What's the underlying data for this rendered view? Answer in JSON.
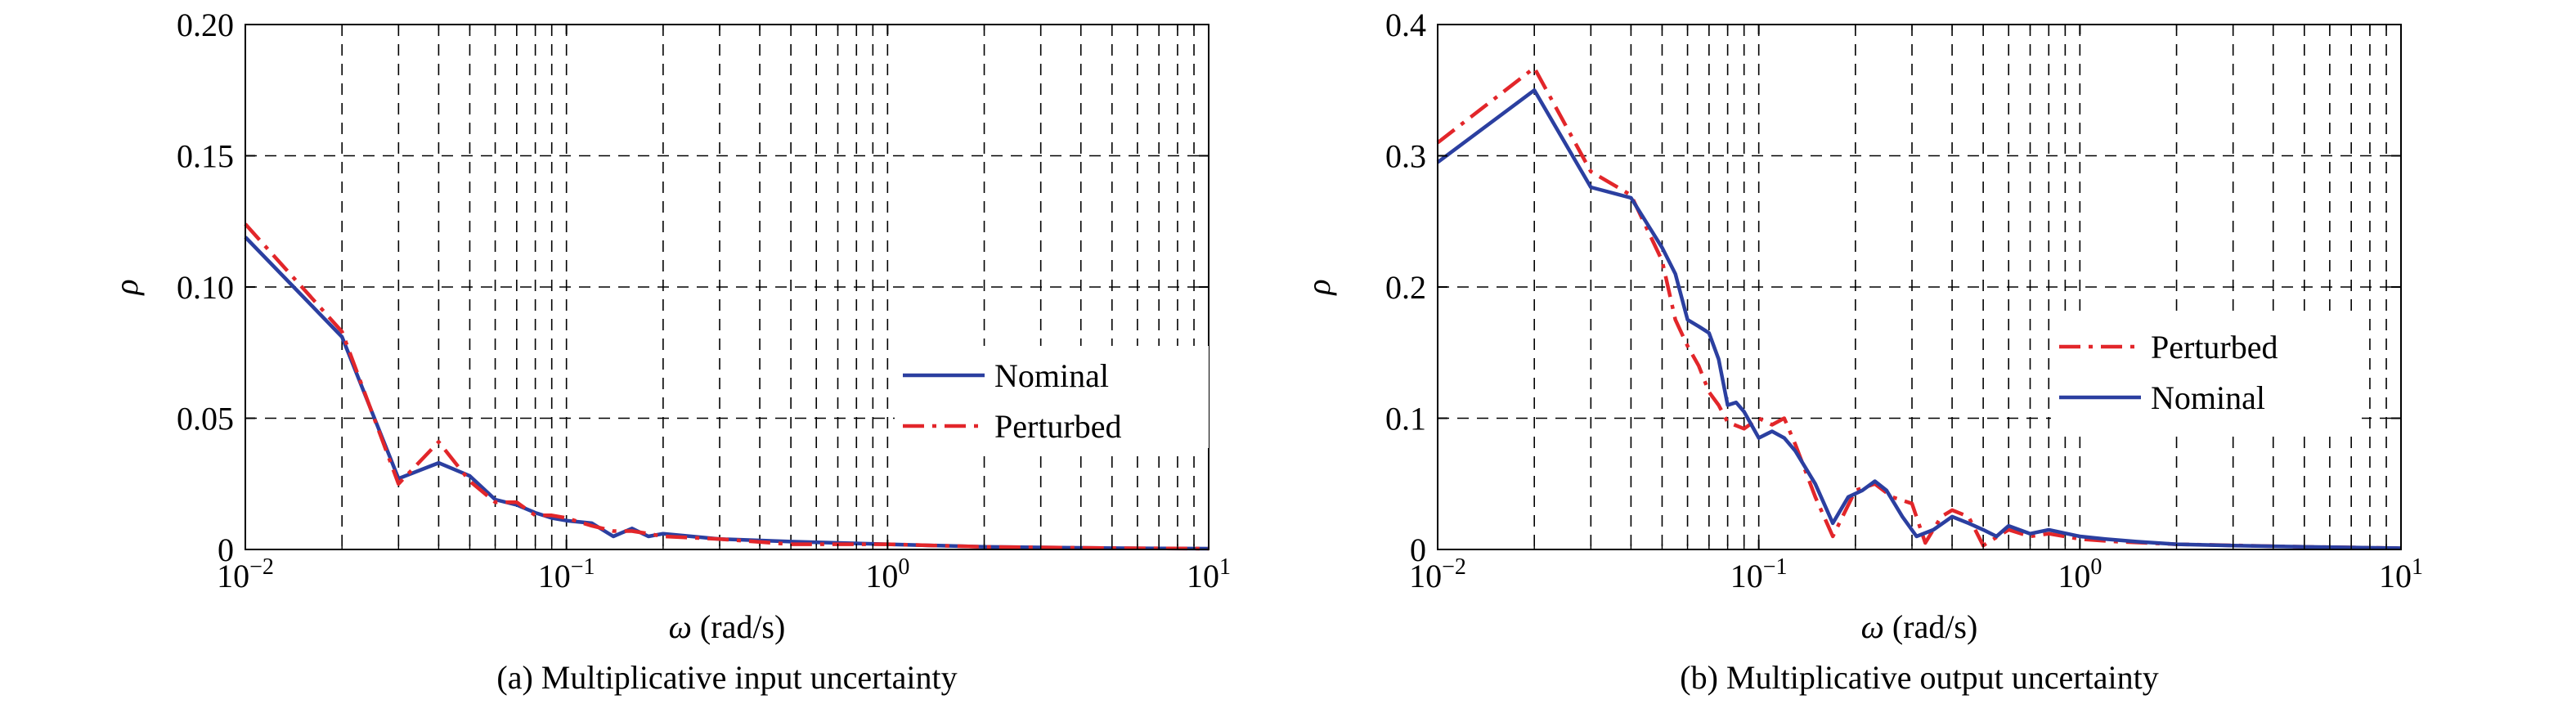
{
  "colors": {
    "nominal": "#2b3fa0",
    "perturbed": "#e2262a"
  },
  "chart_data": [
    {
      "type": "line",
      "caption": "(a)  Multiplicative input uncertainty",
      "xlabel_var": "ω",
      "xlabel_unit": " (rad/s)",
      "ylabel": "ρ",
      "xscale": "log",
      "xlim": [
        0.01,
        10
      ],
      "ylim": [
        0,
        0.2
      ],
      "x_tick_labels": [
        {
          "base": "10",
          "exp": "−2"
        },
        {
          "base": "10",
          "exp": "−1"
        },
        {
          "base": "10",
          "exp": "0"
        },
        {
          "base": "10",
          "exp": "1"
        }
      ],
      "y_ticks": [
        0,
        0.05,
        0.1,
        0.15,
        0.2
      ],
      "y_tick_labels": [
        "0",
        "0.05",
        "0.10",
        "0.15",
        "0.20"
      ],
      "grid": true,
      "legend_position": "center-right",
      "legend_order": [
        "Nominal",
        "Perturbed"
      ],
      "series": [
        {
          "name": "Nominal",
          "style": "solid",
          "x": [
            0.01,
            0.02,
            0.03,
            0.04,
            0.05,
            0.06,
            0.07,
            0.08,
            0.09,
            0.1,
            0.12,
            0.14,
            0.16,
            0.18,
            0.2,
            0.3,
            0.5,
            1,
            2,
            5,
            10
          ],
          "y": [
            0.119,
            0.081,
            0.027,
            0.033,
            0.028,
            0.019,
            0.017,
            0.014,
            0.012,
            0.011,
            0.01,
            0.005,
            0.008,
            0.005,
            0.006,
            0.004,
            0.003,
            0.002,
            0.001,
            0.0005,
            0.0003
          ]
        },
        {
          "name": "Perturbed",
          "style": "dashdot",
          "x": [
            0.01,
            0.02,
            0.03,
            0.04,
            0.05,
            0.06,
            0.07,
            0.08,
            0.09,
            0.1,
            0.12,
            0.14,
            0.16,
            0.18,
            0.2,
            0.3,
            0.5,
            1,
            2,
            5,
            10
          ],
          "y": [
            0.124,
            0.083,
            0.025,
            0.041,
            0.026,
            0.018,
            0.018,
            0.013,
            0.013,
            0.012,
            0.009,
            0.007,
            0.007,
            0.006,
            0.005,
            0.004,
            0.002,
            0.002,
            0.001,
            0.0005,
            0.0003
          ]
        }
      ]
    },
    {
      "type": "line",
      "caption": "(b) Multiplicative output uncertainty",
      "xlabel_var": "ω",
      "xlabel_unit": " (rad/s)",
      "ylabel": "ρ",
      "xscale": "log",
      "xlim": [
        0.01,
        10
      ],
      "ylim": [
        0,
        0.4
      ],
      "x_tick_labels": [
        {
          "base": "10",
          "exp": "−2"
        },
        {
          "base": "10",
          "exp": "−1"
        },
        {
          "base": "10",
          "exp": "0"
        },
        {
          "base": "10",
          "exp": "1"
        }
      ],
      "y_ticks": [
        0,
        0.1,
        0.2,
        0.3,
        0.4
      ],
      "y_tick_labels": [
        "0",
        "0.1",
        "0.2",
        "0.3",
        "0.4"
      ],
      "grid": true,
      "legend_position": "center-right",
      "legend_order": [
        "Perturbed",
        "Nominal"
      ],
      "series": [
        {
          "name": "Perturbed",
          "style": "dashdot",
          "x": [
            0.01,
            0.02,
            0.03,
            0.04,
            0.05,
            0.055,
            0.06,
            0.065,
            0.07,
            0.075,
            0.08,
            0.09,
            0.1,
            0.11,
            0.12,
            0.13,
            0.15,
            0.17,
            0.2,
            0.23,
            0.26,
            0.3,
            0.33,
            0.37,
            0.4,
            0.45,
            0.5,
            0.6,
            0.7,
            0.8,
            1,
            1.3,
            2,
            5,
            10
          ],
          "y": [
            0.31,
            0.367,
            0.288,
            0.27,
            0.22,
            0.175,
            0.155,
            0.14,
            0.12,
            0.11,
            0.097,
            0.092,
            0.1,
            0.095,
            0.1,
            0.08,
            0.04,
            0.01,
            0.045,
            0.05,
            0.04,
            0.035,
            0.005,
            0.025,
            0.03,
            0.025,
            0.003,
            0.015,
            0.01,
            0.012,
            0.008,
            0.006,
            0.004,
            0.002,
            0.001
          ]
        },
        {
          "name": "Nominal",
          "style": "solid",
          "x": [
            0.01,
            0.02,
            0.03,
            0.04,
            0.05,
            0.055,
            0.06,
            0.065,
            0.07,
            0.075,
            0.08,
            0.085,
            0.09,
            0.1,
            0.11,
            0.12,
            0.13,
            0.15,
            0.17,
            0.19,
            0.21,
            0.23,
            0.25,
            0.28,
            0.31,
            0.35,
            0.4,
            0.45,
            0.5,
            0.55,
            0.6,
            0.7,
            0.8,
            1,
            1.2,
            1.5,
            2,
            3,
            5,
            10
          ],
          "y": [
            0.295,
            0.35,
            0.276,
            0.268,
            0.23,
            0.21,
            0.175,
            0.17,
            0.165,
            0.145,
            0.11,
            0.112,
            0.105,
            0.085,
            0.09,
            0.085,
            0.075,
            0.05,
            0.02,
            0.04,
            0.045,
            0.052,
            0.045,
            0.025,
            0.01,
            0.015,
            0.025,
            0.02,
            0.015,
            0.01,
            0.018,
            0.012,
            0.015,
            0.01,
            0.008,
            0.006,
            0.004,
            0.003,
            0.002,
            0.001
          ]
        }
      ]
    }
  ]
}
